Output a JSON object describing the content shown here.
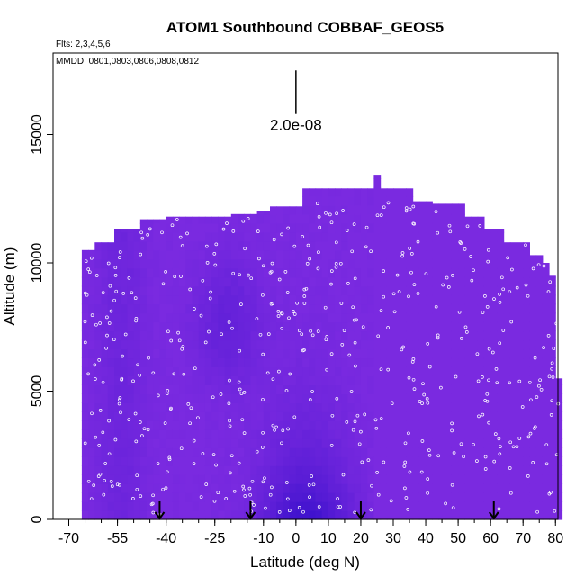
{
  "chart_data": {
    "type": "heatmap",
    "title": "ATOM1 Southbound COBBAF_GEOS5",
    "annotations": {
      "flights": "Flts: 2,3,4,5,6",
      "dates": "MMDD: 0801,0803,0806,0808,0812",
      "scale_value": "2.0e-08"
    },
    "xlabel": "Latitude (deg N)",
    "ylabel": "Altitude (m)",
    "xlim": [
      -70,
      85
    ],
    "ylim": [
      0,
      18000
    ],
    "x_ticks": [
      -70,
      -55,
      -40,
      -25,
      -10,
      0,
      10,
      20,
      30,
      40,
      50,
      60,
      70,
      80
    ],
    "x_tick_labels": [
      "-70",
      "-55",
      "-40",
      "-25",
      "-10",
      "0",
      "10",
      "20",
      "30",
      "40",
      "50",
      "60",
      "70",
      "80"
    ],
    "y_ticks": [
      0,
      5000,
      10000,
      15000
    ],
    "y_tick_labels": [
      "0",
      "5000",
      "10000",
      "15000"
    ],
    "scale_bar": {
      "x": 0,
      "y_bottom": 15800,
      "y_top": 17500
    },
    "profile_markers_lat": [
      -42,
      -14,
      20,
      61
    ],
    "colors": {
      "low": "#7a2ae0",
      "high": "#3a10cc",
      "mid": "#6422dc"
    },
    "curtain_top": [
      {
        "lat": [
          -66,
          -62
        ],
        "alt": 10500
      },
      {
        "lat": [
          -62,
          -55
        ],
        "alt": 10800
      },
      {
        "lat": [
          -55,
          -48
        ],
        "alt": 11300
      },
      {
        "lat": [
          -48,
          -40
        ],
        "alt": 11700
      },
      {
        "lat": [
          -40,
          -20
        ],
        "alt": 11800
      },
      {
        "lat": [
          -20,
          -12
        ],
        "alt": 11900
      },
      {
        "lat": [
          -12,
          -8
        ],
        "alt": 12000
      },
      {
        "lat": [
          -8,
          2
        ],
        "alt": 12200
      },
      {
        "lat": [
          2,
          25
        ],
        "alt": 12900
      },
      {
        "lat": [
          25,
          27
        ],
        "alt": 13400
      },
      {
        "lat": [
          27,
          37
        ],
        "alt": 12900
      },
      {
        "lat": [
          37,
          42
        ],
        "alt": 12400
      },
      {
        "lat": [
          42,
          52
        ],
        "alt": 12300
      },
      {
        "lat": [
          52,
          59
        ],
        "alt": 11800
      },
      {
        "lat": [
          59,
          65
        ],
        "alt": 11300
      },
      {
        "lat": [
          65,
          72
        ],
        "alt": 10800
      },
      {
        "lat": [
          72,
          77
        ],
        "alt": 10300
      },
      {
        "lat": [
          77,
          79
        ],
        "alt": 10000
      },
      {
        "lat": [
          79,
          80
        ],
        "alt": 9500
      },
      {
        "lat": [
          80,
          81
        ],
        "alt": 8500
      },
      {
        "lat": [
          81,
          82
        ],
        "alt": 5500
      }
    ]
  }
}
